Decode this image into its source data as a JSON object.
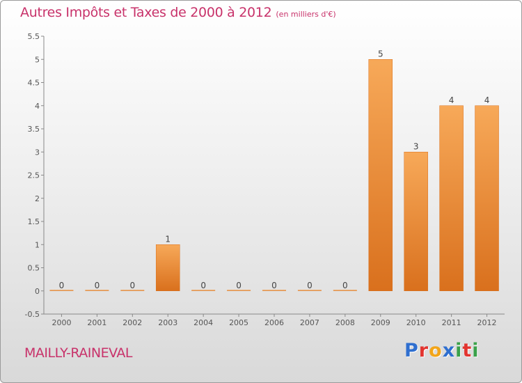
{
  "title": {
    "main": "Autres Impôts et Taxes de 2000 à 2012",
    "unit": "(en milliers d'€)"
  },
  "location": "MAILLY-RAINEVAL",
  "logo": {
    "letters": [
      "P",
      "r",
      "o",
      "x",
      "i",
      "t",
      "i"
    ],
    "colors": [
      "#2f6fcf",
      "#e2342f",
      "#f2a51a",
      "#2f6fcf",
      "#3aa14a",
      "#e2342f",
      "#3aa14a"
    ]
  },
  "colors": {
    "bar_light": "#f7a959",
    "bar_dark": "#d9701d",
    "title": "#c8326a",
    "axis": "#555555"
  },
  "chart_data": {
    "type": "bar",
    "categories": [
      "2000",
      "2001",
      "2002",
      "2003",
      "2004",
      "2005",
      "2006",
      "2007",
      "2008",
      "2009",
      "2010",
      "2011",
      "2012"
    ],
    "values": [
      0,
      0,
      0,
      1,
      0,
      0,
      0,
      0,
      0,
      5,
      3,
      4,
      4
    ],
    "data_labels": [
      "0",
      "0",
      "0",
      "1",
      "0",
      "0",
      "0",
      "0",
      "0",
      "5",
      "3",
      "4",
      "4"
    ],
    "ylim": [
      -0.5,
      5.5
    ],
    "yticks": [
      {
        "value": -0.5,
        "label": "-0.5"
      },
      {
        "value": 0,
        "label": "0"
      },
      {
        "value": 0.5,
        "label": "0.5"
      },
      {
        "value": 1,
        "label": "1"
      },
      {
        "value": 1.5,
        "label": "1.5"
      },
      {
        "value": 2,
        "label": "2"
      },
      {
        "value": 2.5,
        "label": "2.5"
      },
      {
        "value": 3,
        "label": "3"
      },
      {
        "value": 3.5,
        "label": "3.5"
      },
      {
        "value": 4,
        "label": "4"
      },
      {
        "value": 4.5,
        "label": "4.5"
      },
      {
        "value": 5,
        "label": "5"
      },
      {
        "value": 5.5,
        "label": "5.5"
      }
    ],
    "grid": false
  }
}
